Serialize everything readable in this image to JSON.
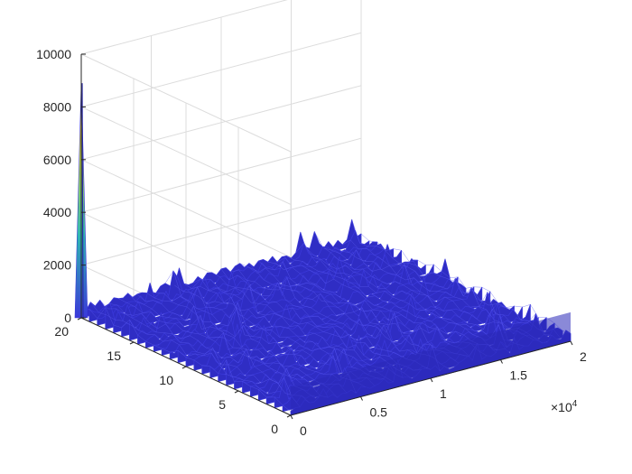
{
  "chart_data": {
    "type": "surface",
    "title": "",
    "xlabel": "",
    "ylabel": "",
    "zlabel": "",
    "x_exponent_label": "×10",
    "x_exponent_power": "4",
    "x_range": [
      0,
      20000
    ],
    "y_range": [
      0,
      20
    ],
    "z_range": [
      0,
      10000
    ],
    "x_ticks": [
      0,
      0.5,
      1,
      1.5,
      2
    ],
    "x_tick_labels": [
      "0",
      "0.5",
      "1",
      "1.5",
      "2"
    ],
    "y_ticks": [
      0,
      5,
      10,
      15,
      20
    ],
    "y_tick_labels": [
      "0",
      "5",
      "10",
      "15",
      "20"
    ],
    "z_ticks": [
      0,
      2000,
      4000,
      6000,
      8000,
      10000
    ],
    "z_tick_labels": [
      "0",
      "2000",
      "4000",
      "6000",
      "8000",
      "10000"
    ],
    "grid": true,
    "colormap": "parula",
    "noise_floor_typical": 400,
    "noise_floor_max": 1100,
    "peak": {
      "x": 0,
      "y": 20,
      "z": 8900
    },
    "colors": {
      "low": "#3a38d9",
      "mid": "#2db7b0",
      "high": "#f5e11d",
      "grid": "#dcdcdc",
      "axis": "#262626"
    }
  }
}
